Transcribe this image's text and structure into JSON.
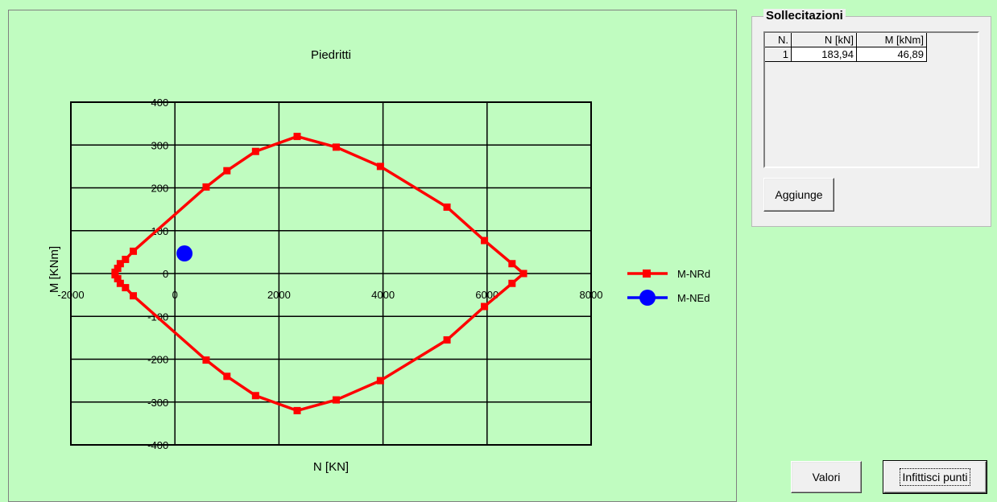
{
  "chart_data": {
    "type": "scatter",
    "title": "Piedritti",
    "xlabel": "N [KN]",
    "ylabel": "M [KNm]",
    "xlim": [
      -2000,
      8000
    ],
    "ylim": [
      -400,
      400
    ],
    "xticks": [
      "-2000",
      "0",
      "2000",
      "4000",
      "6000",
      "8000"
    ],
    "yticks": [
      "400",
      "300",
      "200",
      "100",
      "0",
      "-100",
      "-200",
      "-300",
      "-400"
    ],
    "grid": true,
    "legend_position": "right",
    "series": [
      {
        "name": "M-NRd",
        "color": "#ff0000",
        "marker": "square",
        "line": true,
        "x": [
          6700,
          6480,
          5950,
          5230,
          3950,
          3100,
          2350,
          1550,
          1000,
          600,
          -800,
          -950,
          -1050,
          -1100,
          -1150,
          -1150,
          -1100,
          -1050,
          -950,
          -800,
          600,
          1000,
          1550,
          2350,
          3100,
          3950,
          5230,
          5950,
          6480,
          6700
        ],
        "y": [
          0,
          23,
          77,
          155,
          250,
          295,
          320,
          285,
          240,
          202,
          52,
          33,
          23,
          12,
          3,
          -3,
          -12,
          -23,
          -33,
          -52,
          -202,
          -240,
          -285,
          -320,
          -295,
          -250,
          -155,
          -77,
          -23,
          0
        ]
      },
      {
        "name": "M-NEd",
        "color": "#0000ff",
        "marker": "circle",
        "line": false,
        "x": [
          183.94
        ],
        "y": [
          46.89
        ]
      }
    ]
  },
  "sollecitazioni": {
    "title": "Sollecitazioni",
    "headers": [
      "N.",
      "N [kN]",
      "M [kNm]"
    ],
    "rows": [
      [
        "1",
        "183,94",
        "46,89"
      ]
    ],
    "add_button": "Aggiunge"
  },
  "buttons": {
    "values": "Valori",
    "densify": "Infittisci punti"
  }
}
